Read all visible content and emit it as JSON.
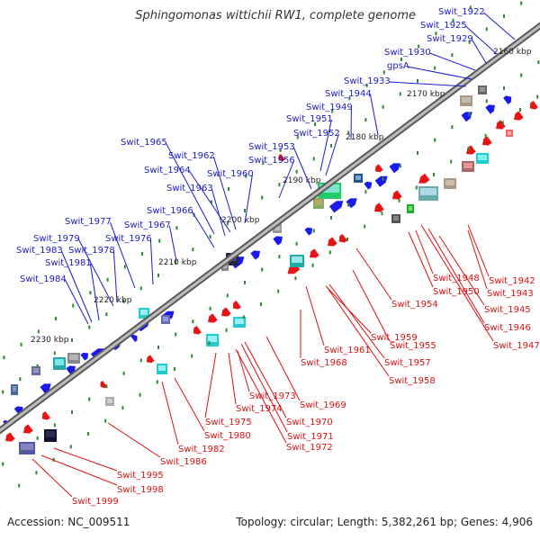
{
  "title": "Sphingomonas wittichii RW1, complete genome",
  "footer": {
    "accession": "Accession: NC_009511",
    "summary": "Topology: circular; Length: 5,382,261 bp; Genes: 4,906"
  },
  "colors": {
    "top_label": "#1a1ad0",
    "bottom_label": "#e01010",
    "backbone": "#808080",
    "tick": "#2e8b2e"
  },
  "kbp_ticks": [
    "2160 kbp",
    "2170 kbp",
    "2180 kbp",
    "2190 kbp",
    "2200 kbp",
    "2210 kbp",
    "2220 kbp",
    "2230 kbp"
  ],
  "top_genes": [
    "Swit_1922",
    "Swit_1925",
    "Swit_1929",
    "Swit_1930",
    "gpsA",
    "Swit_1933",
    "Swit_1944",
    "Swit_1949",
    "Swit_1951",
    "Swit_1952",
    "Swit_1953",
    "Swit_1956",
    "Swit_1960",
    "Swit_1962",
    "Swit_1964",
    "Swit_1963",
    "Swit_1965",
    "Swit_1966",
    "Swit_1967",
    "Swit_1976",
    "Swit_1977",
    "Swit_1978",
    "Swit_1979",
    "Swit_1981",
    "Swit_1983",
    "Swit_1984"
  ],
  "bottom_genes": [
    "Swit_1942",
    "Swit_1943",
    "Swit_1945",
    "Swit_1946",
    "Swit_1947",
    "Swit_1948",
    "Swit_1950",
    "Swit_1954",
    "Swit_1955",
    "Swit_1957",
    "Swit_1958",
    "Swit_1959",
    "Swit_1961",
    "Swit_1968",
    "Swit_1969",
    "Swit_1970",
    "Swit_1971",
    "Swit_1972",
    "Swit_1973",
    "Swit_1974",
    "Swit_1975",
    "Swit_1980",
    "Swit_1982",
    "Swit_1986",
    "Swit_1995",
    "Swit_1998",
    "Swit_1999"
  ]
}
